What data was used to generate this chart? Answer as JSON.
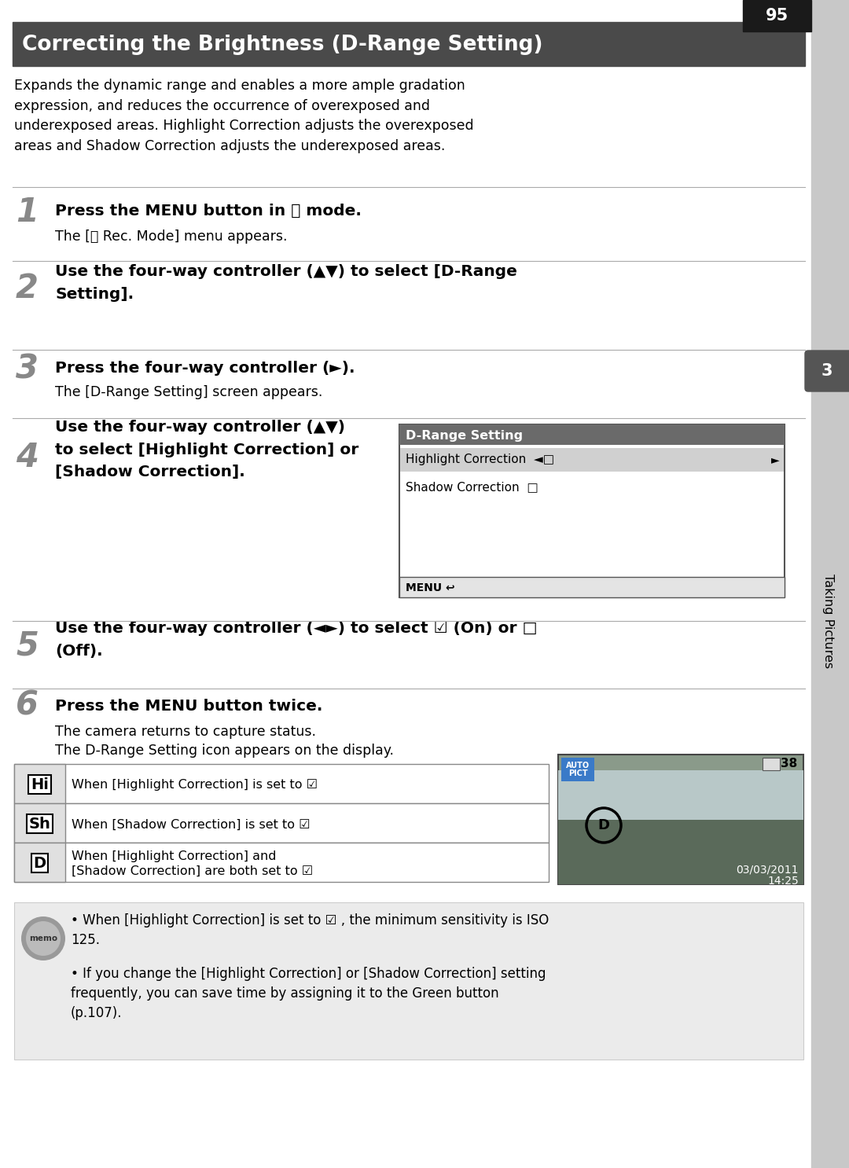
{
  "title": "Correcting the Brightness (D-Range Setting)",
  "title_bg": "#4a4a4a",
  "title_color": "#ffffff",
  "page_bg": "#ffffff",
  "sidebar_bg": "#c8c8c8",
  "page_num": "95",
  "intro_text": "Expands the dynamic range and enables a more ample gradation\nexpression, and reduces the occurrence of overexposed and\nunderexposed areas. Highlight Correction adjusts the overexposed\nareas and Shadow Correction adjusts the underexposed areas.",
  "step1_bold": "Press the MENU button in Ⓜ mode.",
  "step1_sub": "The [Ⓜ Rec. Mode] menu appears.",
  "step2_bold": "Use the four-way controller (▲▼) to select [D-Range\nSetting].",
  "step3_bold": "Press the four-way controller (►).",
  "step3_sub": "The [D-Range Setting] screen appears.",
  "step4_bold": "Use the four-way controller (▲▼)\nto select [Highlight Correction] or\n[Shadow Correction].",
  "step5_bold": "Use the four-way controller (◄►) to select ☑ (On) or □\n(Off).",
  "step6_bold": "Press the MENU button twice.",
  "step6_sub1": "The camera returns to capture status.",
  "step6_sub2": "The D-Range Setting icon appears on the display.",
  "drange_title": "D-Range Setting",
  "drange_row1": "Highlight Correction",
  "drange_row2": "Shadow Correction",
  "icon_row1_desc": "When [Highlight Correction] is set to ☑",
  "icon_row2_desc": "When [Shadow Correction] is set to ☑",
  "icon_row3_desc": "When [Highlight Correction] and\n[Shadow Correction] are both set to ☑",
  "memo_text1": "When [Highlight Correction] is set to ☑ , the minimum sensitivity is ISO\n125.",
  "memo_text2": "If you change the [Highlight Correction] or [Shadow Correction] setting\nfrequently, you can save time by assigning it to the Green button\n(p.107).",
  "cam_date": "03/03/2011",
  "cam_time": "14:25",
  "cam_count": "38",
  "taking_pictures": "Taking Pictures",
  "tab_num": "3",
  "hrule_color": "#aaaaaa",
  "step_num_color": "#888888",
  "sidebar_tab_color": "#555555"
}
